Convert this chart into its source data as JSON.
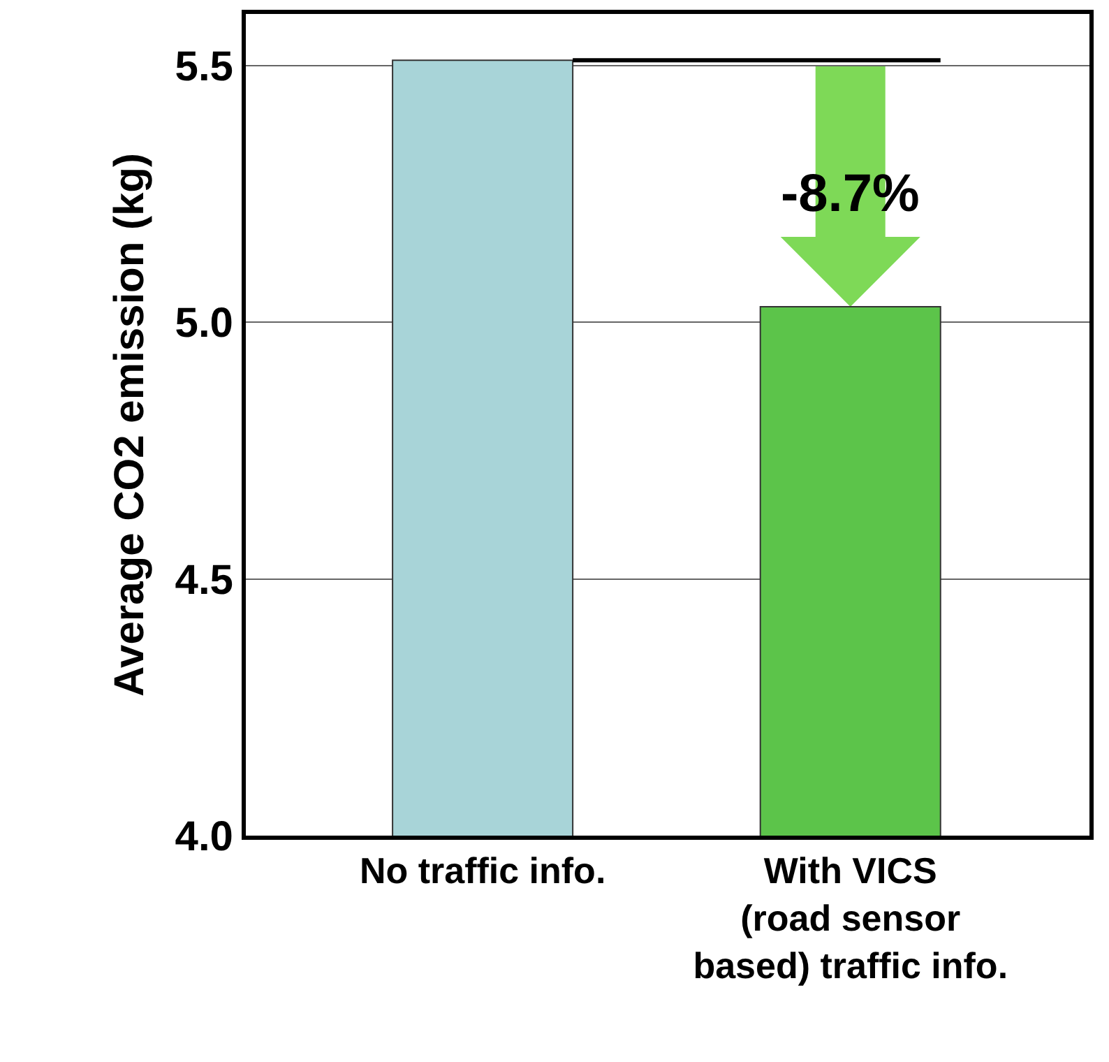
{
  "chart_data": {
    "type": "bar",
    "ylabel": "Average CO2 emission (kg)",
    "categories": [
      "No traffic info.",
      "With VICS\n(road sensor\nbased) traffic info."
    ],
    "values": [
      5.51,
      5.03
    ],
    "colors": [
      "#a8d4d8",
      "#5cc44a"
    ],
    "ylim": [
      4.0,
      5.6
    ],
    "yticks": [
      {
        "value": 4.0,
        "label": "4.0"
      },
      {
        "value": 4.5,
        "label": "4.5"
      },
      {
        "value": 5.0,
        "label": "5.0"
      },
      {
        "value": 5.5,
        "label": "5.5"
      }
    ],
    "grid": "y",
    "ref_lines": [
      {
        "axis": "y",
        "value": 5.51,
        "color": "#000000"
      }
    ],
    "annotations": [
      "-8.7%"
    ]
  }
}
